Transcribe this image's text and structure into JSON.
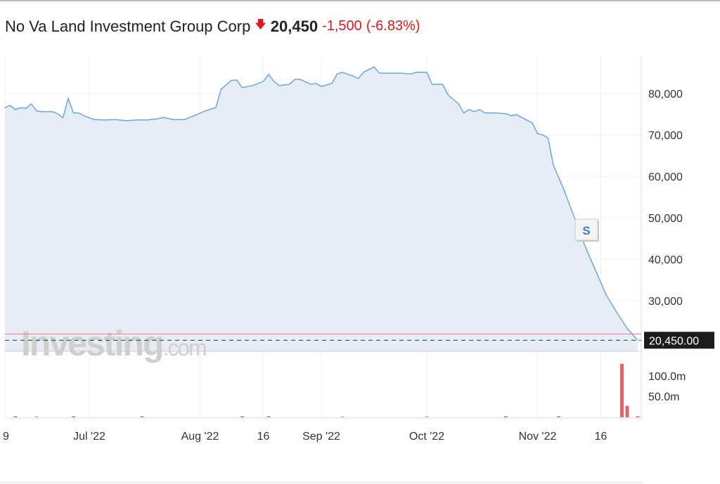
{
  "header": {
    "title": "No Va Land Investment Group Corp",
    "arrow_icon": "arrow-down-icon",
    "price": "20,450",
    "change": "-1,500",
    "change_pct": "(-6.83%)",
    "down_color": "#e0161b"
  },
  "watermark": {
    "brand": "Investing",
    "suffix": ".com"
  },
  "marker": {
    "label": "S"
  },
  "chart_data": {
    "type": "area",
    "title": "No Va Land Investment Group Corp",
    "x_unit": "trading day index",
    "x_ticks": [
      {
        "d": 0,
        "label": "9"
      },
      {
        "d": 16,
        "label": "Jul '22"
      },
      {
        "d": 37,
        "label": "Aug '22"
      },
      {
        "d": 49,
        "label": "16"
      },
      {
        "d": 60,
        "label": "Sep '22"
      },
      {
        "d": 80,
        "label": "Oct '22"
      },
      {
        "d": 101,
        "label": "Nov '22"
      },
      {
        "d": 113,
        "label": "16"
      }
    ],
    "y_ticks": [
      {
        "v": 80000,
        "label": "80,000"
      },
      {
        "v": 70000,
        "label": "70,000"
      },
      {
        "v": 60000,
        "label": "60,000"
      },
      {
        "v": 50000,
        "label": "50,000"
      },
      {
        "v": 40000,
        "label": "40,000"
      },
      {
        "v": 30000,
        "label": "30,000"
      }
    ],
    "ylim": [
      17500,
      89000
    ],
    "last_price": 20450,
    "last_price_label": "20,450.00",
    "prev_close": 21950,
    "grid": true,
    "series": [
      {
        "name": "Price",
        "points": [
          [
            0,
            76600
          ],
          [
            1,
            77100
          ],
          [
            2,
            76100
          ],
          [
            3,
            76600
          ],
          [
            4,
            76400
          ],
          [
            5,
            77500
          ],
          [
            6,
            75800
          ],
          [
            7,
            75600
          ],
          [
            9,
            75600
          ],
          [
            10,
            75100
          ],
          [
            11,
            74100
          ],
          [
            12,
            78800
          ],
          [
            13,
            75300
          ],
          [
            14,
            75300
          ],
          [
            15,
            74600
          ],
          [
            17,
            73700
          ],
          [
            19,
            73600
          ],
          [
            21,
            73700
          ],
          [
            23,
            73400
          ],
          [
            25,
            73600
          ],
          [
            27,
            73600
          ],
          [
            29,
            73900
          ],
          [
            30,
            74200
          ],
          [
            32,
            73700
          ],
          [
            34,
            73700
          ],
          [
            36,
            74700
          ],
          [
            38,
            75800
          ],
          [
            40,
            76600
          ],
          [
            41,
            81000
          ],
          [
            43,
            83200
          ],
          [
            44,
            83200
          ],
          [
            45,
            81400
          ],
          [
            47,
            81900
          ],
          [
            49,
            82900
          ],
          [
            50,
            84600
          ],
          [
            51,
            82900
          ],
          [
            52,
            81900
          ],
          [
            54,
            82200
          ],
          [
            55,
            83400
          ],
          [
            56,
            83400
          ],
          [
            58,
            82200
          ],
          [
            59,
            82400
          ],
          [
            60,
            81700
          ],
          [
            62,
            82400
          ],
          [
            63,
            84700
          ],
          [
            64,
            85100
          ],
          [
            66,
            84200
          ],
          [
            67,
            83600
          ],
          [
            68,
            85100
          ],
          [
            70,
            86400
          ],
          [
            71,
            84900
          ],
          [
            73,
            84900
          ],
          [
            75,
            84900
          ],
          [
            77,
            84700
          ],
          [
            78,
            85100
          ],
          [
            80,
            85100
          ],
          [
            81,
            82200
          ],
          [
            83,
            82200
          ],
          [
            84,
            79700
          ],
          [
            86,
            77500
          ],
          [
            87,
            75300
          ],
          [
            88,
            76100
          ],
          [
            89,
            75600
          ],
          [
            90,
            76100
          ],
          [
            91,
            75300
          ],
          [
            93,
            75300
          ],
          [
            95,
            75100
          ],
          [
            96,
            74600
          ],
          [
            97,
            74900
          ],
          [
            98,
            74200
          ],
          [
            100,
            72900
          ],
          [
            101,
            70300
          ],
          [
            102,
            70000
          ],
          [
            103,
            69200
          ],
          [
            104,
            62700
          ],
          [
            106,
            56800
          ],
          [
            108,
            50000
          ],
          [
            110,
            43200
          ],
          [
            112,
            37300
          ],
          [
            114,
            31400
          ],
          [
            116,
            27200
          ],
          [
            118,
            23300
          ],
          [
            120,
            20450
          ]
        ]
      }
    ],
    "volume": {
      "y_ticks": [
        {
          "v": 100,
          "label": "100.0m"
        },
        {
          "v": 50,
          "label": "50.0m"
        }
      ],
      "ylim": [
        0,
        150
      ],
      "bars": [
        [
          2,
          1.5,
          "down"
        ],
        [
          6,
          1.2,
          "up"
        ],
        [
          13,
          2,
          "down"
        ],
        [
          26,
          1,
          "down"
        ],
        [
          45,
          1.8,
          "down"
        ],
        [
          50,
          1.5,
          "down"
        ],
        [
          64,
          1.2,
          "up"
        ],
        [
          80,
          1,
          "up"
        ],
        [
          95,
          1,
          "down"
        ],
        [
          105,
          1.2,
          "down"
        ],
        [
          117,
          131,
          "down"
        ],
        [
          118,
          28,
          "down"
        ],
        [
          120,
          1.5,
          "down"
        ]
      ]
    }
  }
}
